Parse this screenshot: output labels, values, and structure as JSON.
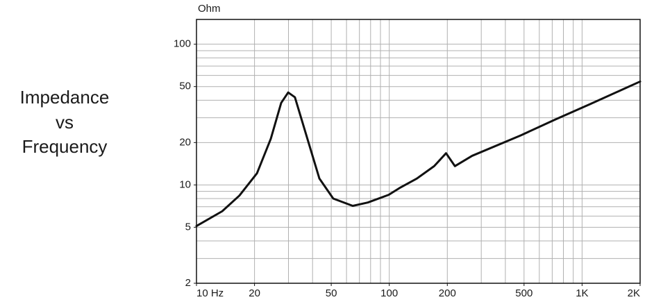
{
  "chart_data": {
    "type": "line",
    "title": [
      "Impedance",
      "vs",
      "Frequency"
    ],
    "y_label": "Ohm",
    "log_x": true,
    "log_y": true,
    "xlim": [
      10,
      2000
    ],
    "ylim": [
      2,
      150
    ],
    "xticks": [
      {
        "value": 10,
        "label": "10 Hz"
      },
      20,
      50,
      100,
      200,
      500,
      {
        "value": 1000,
        "label": "1K"
      },
      {
        "value": 2000,
        "label": "2K"
      }
    ],
    "yticks": [
      2,
      5,
      10,
      20,
      50,
      100
    ],
    "xgrid": [
      10,
      20,
      30,
      40,
      50,
      60,
      70,
      80,
      90,
      100,
      200,
      300,
      400,
      500,
      600,
      700,
      800,
      900,
      1000,
      2000
    ],
    "ygrid": [
      2,
      3,
      4,
      5,
      6,
      7,
      8,
      9,
      10,
      20,
      30,
      40,
      50,
      60,
      70,
      80,
      90,
      100
    ],
    "grid_color": "#b0b0b0",
    "series": [
      {
        "color": "#111111",
        "x": [
          10,
          13.6,
          16.7,
          20.6,
          24.3,
          27.5,
          29.9,
          32.4,
          36.7,
          43.4,
          51.2,
          64.6,
          77.4,
          99.3,
          113,
          139,
          171,
          197,
          219,
          269,
          481,
          728,
          1100,
          2000
        ],
        "values": [
          5.1,
          6.5,
          8.4,
          12.1,
          21.3,
          38.3,
          45.4,
          42,
          23.8,
          11.1,
          8,
          7.1,
          7.5,
          8.5,
          9.5,
          11.1,
          13.6,
          16.8,
          13.6,
          16.1,
          22.5,
          29.2,
          37.5,
          54.3
        ]
      }
    ]
  }
}
